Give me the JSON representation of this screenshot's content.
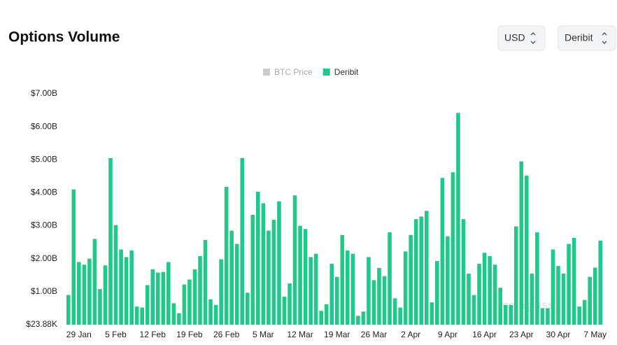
{
  "chart_data": {
    "type": "bar",
    "title": "Options Volume",
    "controls": [
      "USD",
      "Deribit"
    ],
    "watermark": "coinglass",
    "hidden_series": [
      {
        "name": "BTC Price",
        "color": "#cccccc"
      }
    ],
    "categories": [
      null,
      null,
      "29 Jan",
      null,
      null,
      null,
      null,
      null,
      null,
      "5 Feb",
      null,
      null,
      null,
      null,
      null,
      null,
      "12 Feb",
      null,
      null,
      null,
      null,
      null,
      null,
      "19 Feb",
      null,
      null,
      null,
      null,
      null,
      null,
      "26 Feb",
      null,
      null,
      null,
      null,
      null,
      null,
      "5 Mar",
      null,
      null,
      null,
      null,
      null,
      null,
      "12 Mar",
      null,
      null,
      null,
      null,
      null,
      null,
      "19 Mar",
      null,
      null,
      null,
      null,
      null,
      null,
      "26 Mar",
      null,
      null,
      null,
      null,
      null,
      null,
      "2 Apr",
      null,
      null,
      null,
      null,
      null,
      null,
      "9 Apr",
      null,
      null,
      null,
      null,
      null,
      null,
      "16 Apr",
      null,
      null,
      null,
      null,
      null,
      null,
      "23 Apr",
      null,
      null,
      null,
      null,
      null,
      null,
      "30 Apr",
      null,
      null,
      null,
      null,
      null,
      null,
      "7 May",
      null
    ],
    "series": [
      {
        "name": "Deribit",
        "color": "#1fc98a",
        "values": [
          0.9,
          4.1,
          1.9,
          1.82,
          2.0,
          2.6,
          1.08,
          1.8,
          5.05,
          3.02,
          2.28,
          2.05,
          2.25,
          0.55,
          0.52,
          1.2,
          1.68,
          1.58,
          1.6,
          1.9,
          0.65,
          0.35,
          1.22,
          1.37,
          1.68,
          2.08,
          2.57,
          0.77,
          0.6,
          1.98,
          4.18,
          2.85,
          2.45,
          5.05,
          0.97,
          3.33,
          4.03,
          3.68,
          2.85,
          3.18,
          3.74,
          0.85,
          1.25,
          3.92,
          3.0,
          2.9,
          2.05,
          2.15,
          0.42,
          0.62,
          1.85,
          1.45,
          2.72,
          2.25,
          2.15,
          0.27,
          0.4,
          2.05,
          1.35,
          1.72,
          1.47,
          2.8,
          0.8,
          0.52,
          2.22,
          2.72,
          3.2,
          3.28,
          3.45,
          0.68,
          1.93,
          4.45,
          2.68,
          4.62,
          6.42,
          3.2,
          1.55,
          0.9,
          1.85,
          2.18,
          2.08,
          1.82,
          1.12,
          0.6,
          0.6,
          2.98,
          4.95,
          4.52,
          1.55,
          2.8,
          0.5,
          0.5,
          2.28,
          1.78,
          1.55,
          2.45,
          2.63,
          0.55,
          0.75,
          1.45,
          1.73,
          2.55
        ]
      }
    ],
    "ylim": [
      2.388e-05,
      7
    ],
    "yticks": [
      {
        "value": 2.388e-05,
        "label": "$23.88K"
      },
      {
        "value": 1,
        "label": "$1.00B"
      },
      {
        "value": 2,
        "label": "$2.00B"
      },
      {
        "value": 3,
        "label": "$3.00B"
      },
      {
        "value": 4,
        "label": "$4.00B"
      },
      {
        "value": 5,
        "label": "$5.00B"
      },
      {
        "value": 6,
        "label": "$6.00B"
      },
      {
        "value": 7,
        "label": "$7.00B"
      }
    ],
    "grid": false
  }
}
